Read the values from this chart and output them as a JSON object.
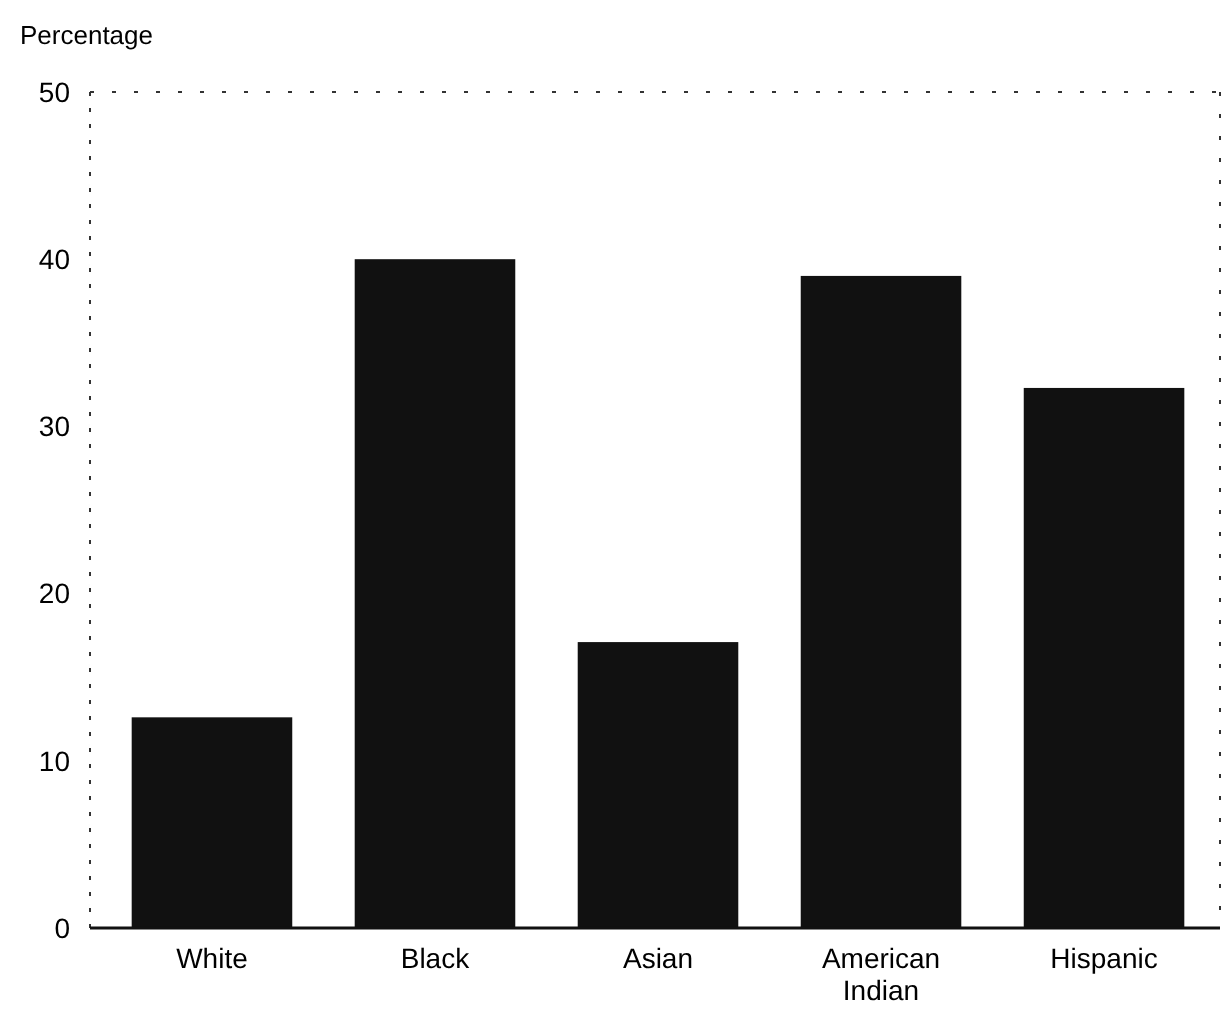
{
  "chart_data": {
    "type": "bar",
    "ylabel": "Percentage",
    "categories": [
      "White",
      "Black",
      "Asian",
      "American Indian",
      "Hispanic"
    ],
    "values": [
      12.6,
      40.0,
      17.1,
      39.0,
      32.3
    ],
    "color": "#111111",
    "ylim": [
      0,
      50
    ],
    "yticks": [
      0,
      10,
      20,
      30,
      40,
      50
    ],
    "grid": false
  }
}
